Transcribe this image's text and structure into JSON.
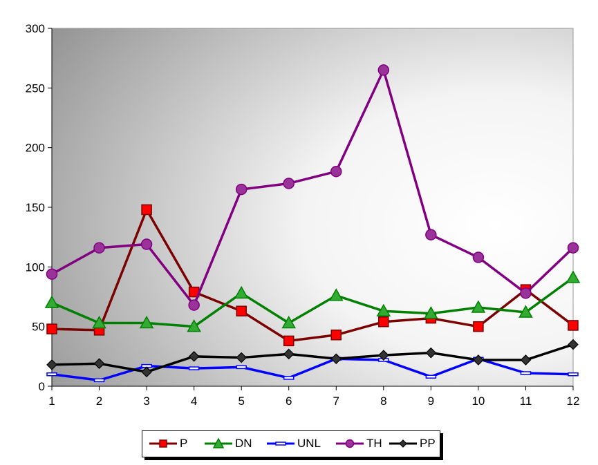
{
  "chart_data": {
    "type": "line",
    "categories": [
      "1",
      "2",
      "3",
      "4",
      "5",
      "6",
      "7",
      "8",
      "9",
      "10",
      "11",
      "12"
    ],
    "ylim": [
      0,
      300
    ],
    "yticks": [
      "0",
      "50",
      "100",
      "150",
      "200",
      "250",
      "300"
    ],
    "grid": false,
    "legend_position": "bottom",
    "series": [
      {
        "name": "P",
        "color": "#7b0000",
        "marker": "square",
        "marker_color": "#ff0000",
        "values": [
          48,
          47,
          148,
          79,
          63,
          38,
          43,
          54,
          57,
          50,
          81,
          51
        ]
      },
      {
        "name": "DN",
        "color": "#008000",
        "marker": "triangle",
        "marker_color": "#33aa33",
        "values": [
          70,
          53,
          53,
          50,
          78,
          53,
          76,
          63,
          61,
          66,
          62,
          91
        ]
      },
      {
        "name": "UNL",
        "color": "#0000ff",
        "marker": "dash",
        "marker_color": "#0000ff",
        "values": [
          10,
          5,
          17,
          15,
          16,
          7,
          23,
          22,
          8,
          23,
          11,
          10
        ]
      },
      {
        "name": "TH",
        "color": "#800080",
        "marker": "circle",
        "marker_color": "#993399",
        "values": [
          94,
          116,
          119,
          68,
          165,
          170,
          180,
          265,
          127,
          108,
          78,
          116
        ]
      },
      {
        "name": "PP",
        "color": "#000000",
        "marker": "diamond",
        "marker_color": "#333333",
        "values": [
          18,
          19,
          12,
          25,
          24,
          27,
          23,
          26,
          28,
          22,
          22,
          35
        ]
      }
    ]
  }
}
